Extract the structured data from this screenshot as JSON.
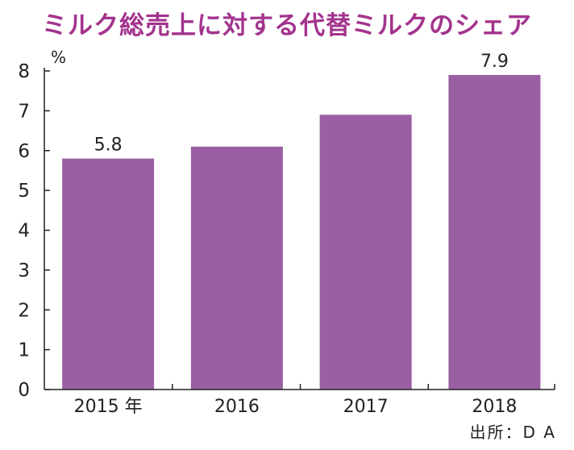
{
  "title": "ミルク総売上に対する代替ミルクのシェア",
  "source": "出所：D A",
  "colors": {
    "title": "#A3338D",
    "bar": "#9A5FA3",
    "axis": "#222222",
    "text": "#222222"
  },
  "chart_data": {
    "type": "bar",
    "title": "ミルク総売上に対する代替ミルクのシェア",
    "xlabel": "",
    "ylabel": "",
    "y_unit": "%",
    "categories": [
      "2015",
      "2016",
      "2017",
      "2018"
    ],
    "category_labels": [
      "2015 年",
      "2016",
      "2017",
      "2018"
    ],
    "values": [
      5.8,
      6.1,
      6.9,
      7.9
    ],
    "data_labels": [
      "5.8",
      "",
      "",
      "7.9"
    ],
    "ylim": [
      0,
      8
    ],
    "yticks": [
      0,
      1,
      2,
      3,
      4,
      5,
      6,
      7,
      8
    ],
    "grid": false,
    "legend": "none"
  }
}
